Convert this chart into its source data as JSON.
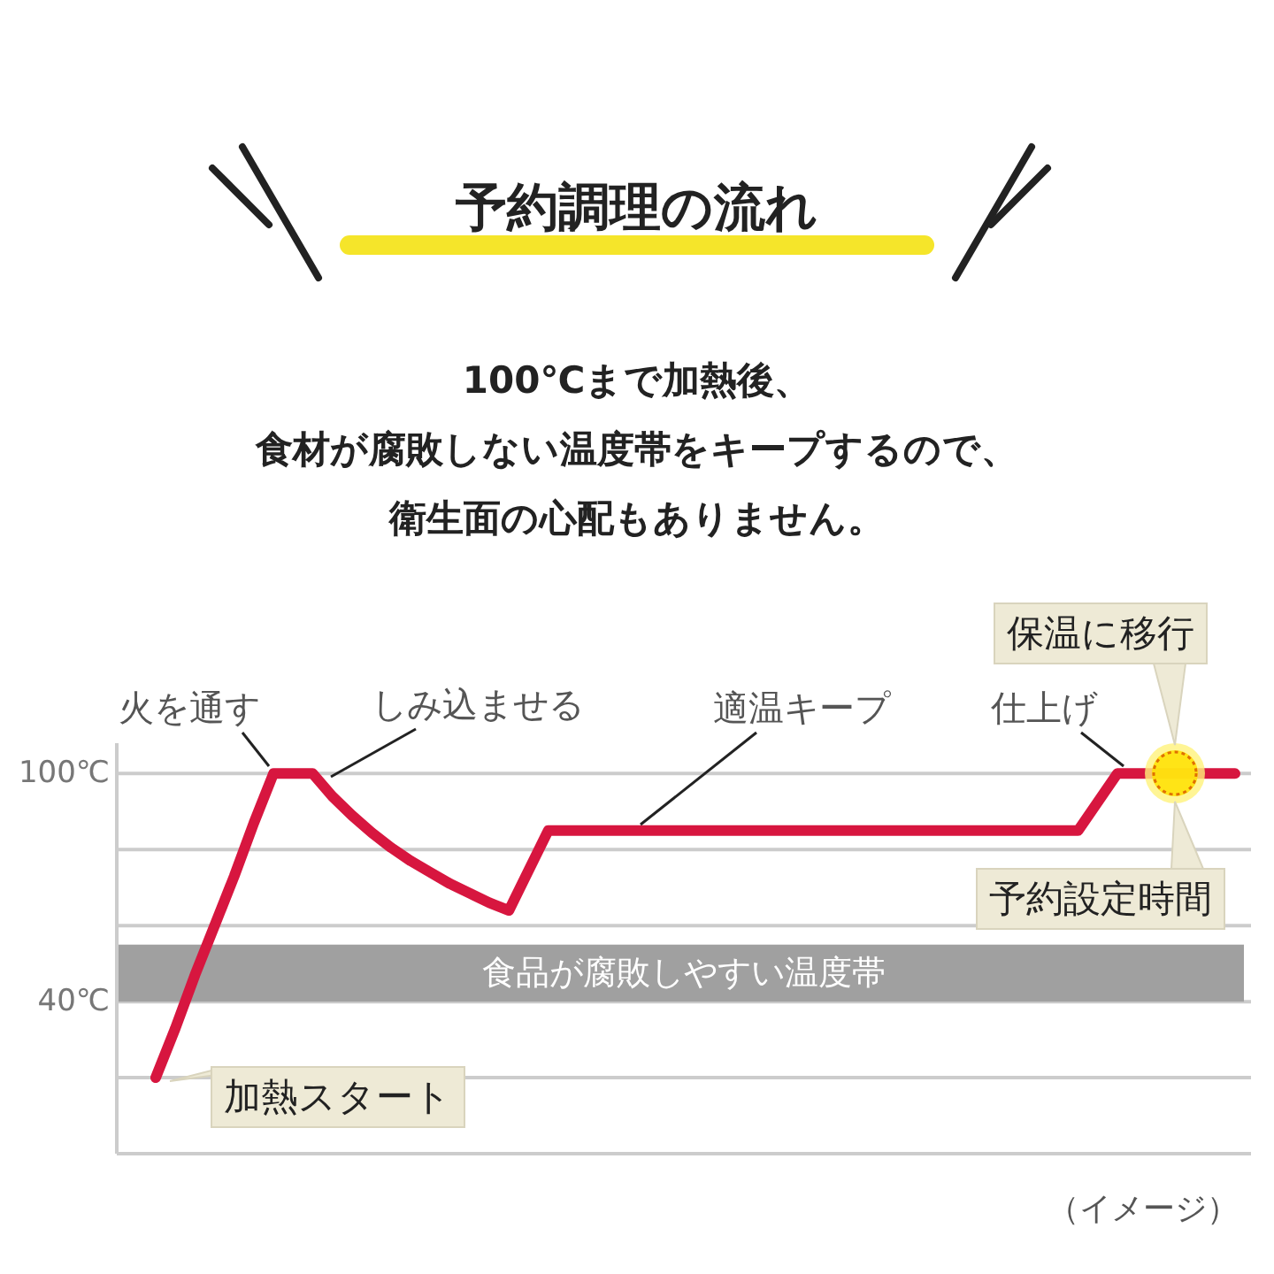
{
  "chart_data": {
    "type": "line",
    "title": "予約調理の流れ",
    "subtitle": "100℃まで加熱後、食材が腐敗しない温度帯をキープするので、衛生面の心配もありません。",
    "ylim": [
      0,
      108
    ],
    "yticks": [
      {
        "value": 0,
        "label": null
      },
      {
        "value": 20,
        "label": null
      },
      {
        "value": 40,
        "label": "40℃"
      },
      {
        "value": 60,
        "label": null
      },
      {
        "value": 80,
        "label": null
      },
      {
        "value": 100,
        "label": "100℃"
      }
    ],
    "tick_labels": "y",
    "grid": "y",
    "line_style": "solid",
    "categories": [
      null,
      null,
      null,
      null,
      null,
      null,
      null,
      null,
      null,
      null,
      null,
      null,
      null,
      null,
      null,
      null,
      null,
      null,
      null,
      null,
      null,
      null,
      null,
      null,
      null,
      null,
      null,
      null,
      null,
      null,
      null,
      null,
      null,
      null,
      null,
      null,
      null,
      null,
      null,
      null,
      null,
      null,
      null,
      null,
      null,
      null,
      null,
      null,
      null,
      null,
      null,
      null,
      null,
      null,
      null,
      null
    ],
    "series": [
      {
        "color": "#d7163f",
        "values": [
          20,
          33,
          47,
          60,
          73,
          87,
          100,
          100,
          100,
          94,
          89,
          84.5,
          80.5,
          77,
          74,
          71,
          68.5,
          66,
          64,
          74.5,
          85,
          85,
          85,
          85,
          85,
          85,
          85,
          85,
          85,
          85,
          85,
          85,
          85,
          85,
          85,
          85,
          85,
          85,
          85,
          85,
          85,
          85,
          85,
          85,
          85,
          85,
          85,
          85,
          92.5,
          100,
          100,
          100,
          100,
          100,
          100,
          100
        ]
      }
    ],
    "bands": [
      {
        "axis": "y",
        "from": 40,
        "to": 55,
        "label": "食品が腐敗しやすい温度帯",
        "color": "#a0a0a0"
      }
    ],
    "annotations": [
      "火を通す",
      "しみ込ませる",
      "適温キープ",
      "仕上げ",
      "保温に移行",
      "予約設定時間",
      "加熱スタート",
      "（イメージ）"
    ]
  }
}
